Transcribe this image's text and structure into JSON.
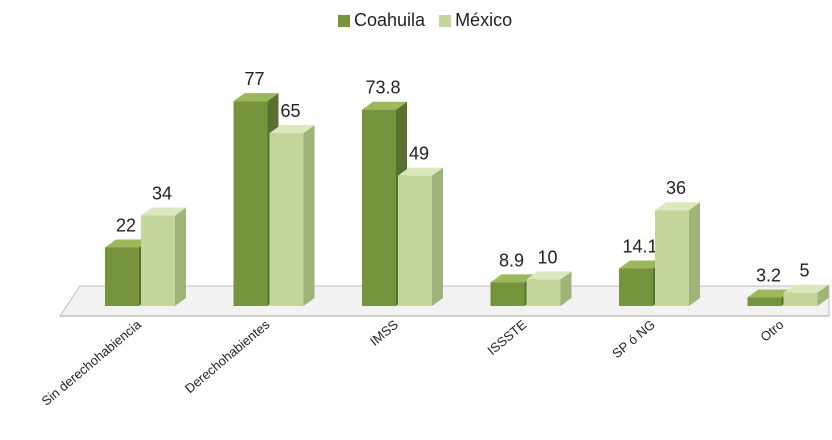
{
  "chart_data": {
    "type": "bar",
    "categories": [
      "Sin derechohabiencia",
      "Derechohabientes",
      "IMSS",
      "ISSSTE",
      "SP ó NG",
      "Otro"
    ],
    "series": [
      {
        "name": "Coahuila",
        "values": [
          22,
          77,
          73.8,
          8.9,
          14.1,
          3.2
        ],
        "labels": [
          "22",
          "77",
          "73.8",
          "8.9",
          "14.1",
          "3.2"
        ]
      },
      {
        "name": "México",
        "values": [
          34,
          65,
          49,
          10,
          36,
          5
        ],
        "labels": [
          "34",
          "65",
          "49",
          "10",
          "36",
          "5"
        ]
      }
    ],
    "ylim": [
      0,
      80
    ],
    "legend_position": "top-center",
    "grid": false,
    "style": "3d-clustered-column"
  },
  "colors": {
    "coahuila": "#77933c",
    "mexico": "#c3d69b"
  }
}
